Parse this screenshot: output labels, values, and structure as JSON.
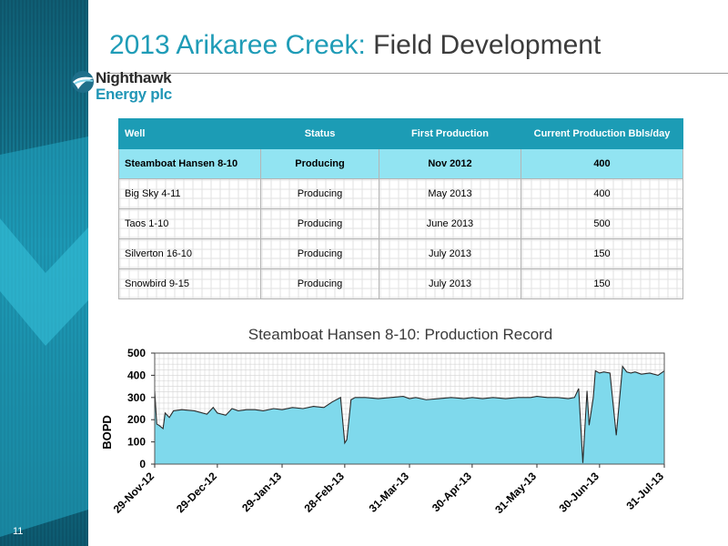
{
  "slide": {
    "number": "11"
  },
  "title": {
    "part1": "2013 Arikaree Creek:",
    "part2": "Field Development"
  },
  "logo": {
    "line1": "Nighthawk",
    "line2": "Energy plc"
  },
  "colors": {
    "accent": "#1f9cb7",
    "header_bg": "#1c9cb5",
    "highlight_row": "#92e4f2",
    "series_fill": "#7fd9ec"
  },
  "table": {
    "headers": [
      "Well",
      "Status",
      "First Production",
      "Current Production Bbls/day"
    ],
    "rows": [
      [
        "Steamboat Hansen 8-10",
        "Producing",
        "Nov 2012",
        "400"
      ],
      [
        "Big Sky  4-11",
        "Producing",
        "May 2013",
        "400"
      ],
      [
        "Taos  1-10",
        "Producing",
        "June 2013",
        "500"
      ],
      [
        "Silverton  16-10",
        "Producing",
        "July 2013",
        "150"
      ],
      [
        "Snowbird 9-15",
        "Producing",
        "July 2013",
        "150"
      ]
    ]
  },
  "chart_data": {
    "type": "area",
    "title": "Steamboat Hansen 8-10: Production Record",
    "ylabel": "BOPD",
    "xlabel": "",
    "ylim": [
      0,
      500
    ],
    "yticks": [
      "0",
      "100",
      "200",
      "300",
      "400",
      "500"
    ],
    "xlim": [
      "2012-11-29",
      "2013-07-31"
    ],
    "xticks": [
      "29-Nov-12",
      "29-Dec-12",
      "29-Jan-13",
      "28-Feb-13",
      "31-Mar-13",
      "30-Apr-13",
      "31-May-13",
      "30-Jun-13",
      "31-Jul-13"
    ],
    "grid": true,
    "legend": "none",
    "series": [
      {
        "x": [
          "2012-11-29",
          "2012-11-30",
          "2012-12-01",
          "2012-12-03",
          "2012-12-04",
          "2012-12-06",
          "2012-12-08",
          "2012-12-12",
          "2012-12-18",
          "2012-12-24",
          "2012-12-27",
          "2012-12-29",
          "2013-01-02",
          "2013-01-05",
          "2013-01-08",
          "2013-01-12",
          "2013-01-16",
          "2013-01-20",
          "2013-01-25",
          "2013-01-29",
          "2013-02-03",
          "2013-02-08",
          "2013-02-13",
          "2013-02-18",
          "2013-02-22",
          "2013-02-26",
          "2013-02-28",
          "2013-03-01",
          "2013-03-03",
          "2013-03-05",
          "2013-03-10",
          "2013-03-16",
          "2013-03-22",
          "2013-03-28",
          "2013-03-31",
          "2013-04-03",
          "2013-04-08",
          "2013-04-14",
          "2013-04-20",
          "2013-04-26",
          "2013-04-30",
          "2013-05-05",
          "2013-05-10",
          "2013-05-16",
          "2013-05-22",
          "2013-05-28",
          "2013-05-31",
          "2013-06-05",
          "2013-06-10",
          "2013-06-15",
          "2013-06-18",
          "2013-06-20",
          "2013-06-22",
          "2013-06-24",
          "2013-06-25",
          "2013-06-27",
          "2013-06-28",
          "2013-06-30",
          "2013-07-02",
          "2013-07-05",
          "2013-07-08",
          "2013-07-11",
          "2013-07-13",
          "2013-07-15",
          "2013-07-17",
          "2013-07-20",
          "2013-07-24",
          "2013-07-28",
          "2013-07-31"
        ],
        "y": [
          330,
          180,
          175,
          160,
          230,
          210,
          240,
          245,
          240,
          225,
          255,
          230,
          220,
          250,
          240,
          245,
          245,
          240,
          250,
          245,
          255,
          250,
          260,
          255,
          280,
          300,
          95,
          110,
          290,
          300,
          300,
          295,
          300,
          305,
          295,
          300,
          290,
          295,
          300,
          295,
          300,
          295,
          300,
          295,
          300,
          300,
          305,
          300,
          300,
          295,
          300,
          340,
          5,
          330,
          175,
          300,
          420,
          410,
          415,
          410,
          130,
          440,
          415,
          410,
          415,
          405,
          410,
          400,
          420
        ]
      }
    ]
  }
}
